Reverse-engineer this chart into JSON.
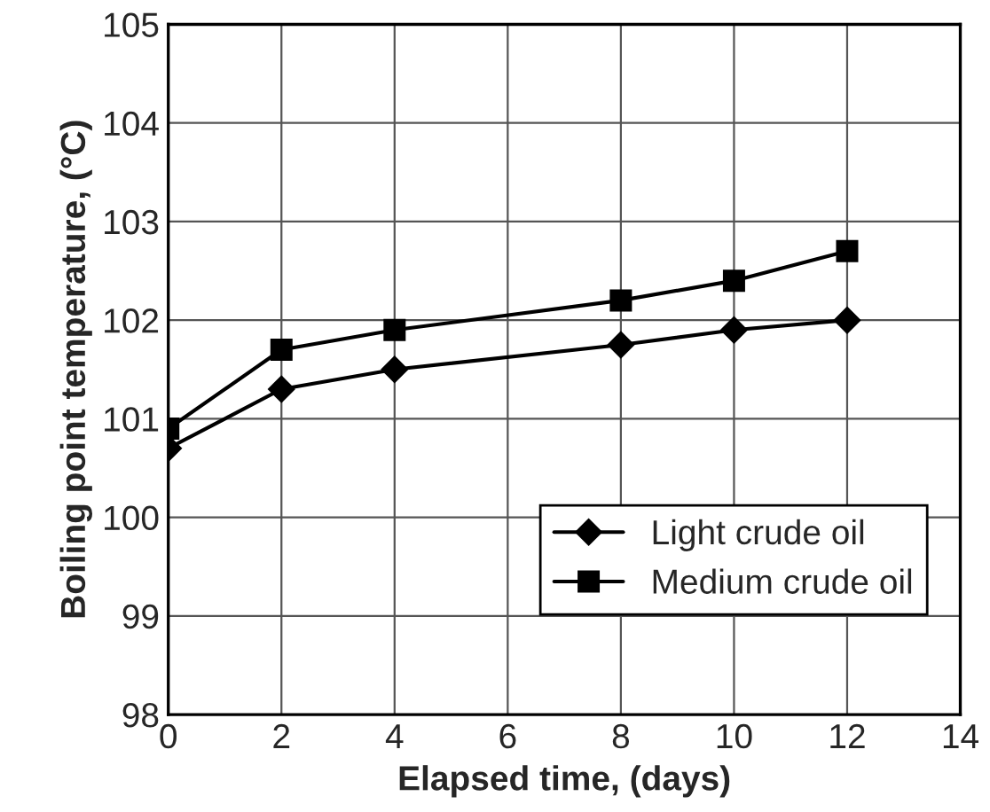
{
  "chart_data": {
    "type": "line",
    "xlabel": "Elapsed time, (days)",
    "ylabel": "Boiling point temperature, (°C)",
    "xlim": [
      0,
      14
    ],
    "xticks": [
      0,
      2,
      4,
      6,
      8,
      10,
      12,
      14
    ],
    "ylim": [
      98,
      105
    ],
    "yticks": [
      98,
      99,
      100,
      101,
      102,
      103,
      104,
      105
    ],
    "grid": true,
    "legend": "bottom right",
    "series": [
      {
        "name": "Light crude oil",
        "color": "#000000",
        "marker": "diamond",
        "x": [
          0,
          2,
          4,
          8,
          10,
          12
        ],
        "values": [
          100.7,
          101.3,
          101.5,
          101.75,
          101.9,
          102.0
        ]
      },
      {
        "name": "Medium crude oil",
        "color": "#000000",
        "marker": "square",
        "x": [
          0,
          2,
          4,
          8,
          10,
          12
        ],
        "values": [
          100.9,
          101.7,
          101.9,
          102.2,
          102.4,
          102.7
        ]
      }
    ]
  }
}
